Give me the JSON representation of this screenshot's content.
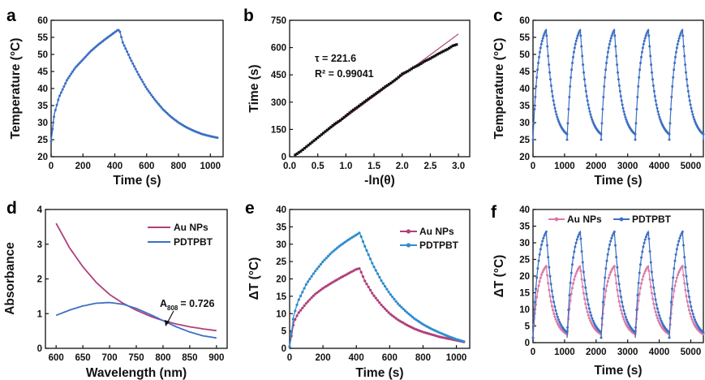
{
  "figure": {
    "panel_labels": [
      "a",
      "b",
      "c",
      "d",
      "e",
      "f"
    ],
    "colors": {
      "blue": "#3c6fc4",
      "magenta": "#b0407a",
      "teal_blue": "#2f8ccd",
      "pink": "#d97aa8",
      "fit_line": "#b0407a",
      "black": "#111111"
    }
  },
  "chart_data": [
    {
      "panel": "a",
      "type": "scatter",
      "xlabel": "Time (s)",
      "ylabel": "Temperature (°C)",
      "xlim": [
        0,
        1080
      ],
      "ylim": [
        20,
        60
      ],
      "xticks": [
        0,
        200,
        400,
        600,
        800,
        1000
      ],
      "yticks": [
        20,
        25,
        30,
        35,
        40,
        45,
        50,
        55,
        60
      ],
      "series": [
        {
          "color": "#3c6fc4",
          "x": [
            0,
            20,
            50,
            100,
            150,
            200,
            250,
            300,
            350,
            400,
            420,
            430,
            450,
            500,
            550,
            600,
            650,
            700,
            750,
            800,
            850,
            900,
            950,
            1000,
            1050
          ],
          "y": [
            24.5,
            32.5,
            37.5,
            42.5,
            46.0,
            48.5,
            51.0,
            53.0,
            54.8,
            56.5,
            57.2,
            57.0,
            53.5,
            48.5,
            44.0,
            40.0,
            36.8,
            34.0,
            31.8,
            30.0,
            28.6,
            27.5,
            26.6,
            26.0,
            25.5
          ]
        }
      ]
    },
    {
      "panel": "b",
      "type": "scatter",
      "xlabel": "-ln(θ)",
      "ylabel": "Time (s)",
      "xlim": [
        0,
        3.2
      ],
      "ylim": [
        0,
        750
      ],
      "xticks": [
        0.0,
        0.5,
        1.0,
        1.5,
        2.0,
        2.5,
        3.0
      ],
      "yticks": [
        0,
        150,
        300,
        450,
        600,
        750
      ],
      "annotations": [
        "τ = 221.6",
        "R² = 0.99041"
      ],
      "fit": {
        "x": [
          0.1,
          3.0
        ],
        "y": [
          12,
          675
        ]
      },
      "series": [
        {
          "color": "#111111",
          "x": [
            0.1,
            0.2,
            0.3,
            0.4,
            0.5,
            0.6,
            0.7,
            0.8,
            0.9,
            1.0,
            1.1,
            1.2,
            1.3,
            1.4,
            1.5,
            1.6,
            1.7,
            1.8,
            1.9,
            2.0,
            2.1,
            2.2,
            2.3,
            2.4,
            2.5,
            2.6,
            2.7,
            2.8,
            2.9,
            3.0
          ],
          "y": [
            10,
            30,
            55,
            80,
            105,
            130,
            155,
            180,
            200,
            225,
            250,
            272,
            295,
            318,
            340,
            362,
            385,
            405,
            428,
            455,
            470,
            490,
            505,
            525,
            540,
            558,
            575,
            590,
            610,
            620
          ]
        }
      ]
    },
    {
      "panel": "c",
      "type": "scatter",
      "xlabel": "Time (s)",
      "ylabel": "Temperature (°C)",
      "xlim": [
        0,
        5400
      ],
      "ylim": [
        20,
        60
      ],
      "xticks": [
        0,
        1000,
        2000,
        3000,
        4000,
        5000
      ],
      "yticks": [
        20,
        25,
        30,
        35,
        40,
        45,
        50,
        55,
        60
      ],
      "cycles": {
        "count": 5,
        "period": 1080,
        "start": [
          0,
          1080,
          2160,
          3240,
          4320
        ],
        "peak_time_offset": 420,
        "peak": 57.2,
        "min": 25.0
      },
      "series": [
        {
          "color": "#3c6fc4"
        }
      ]
    },
    {
      "panel": "d",
      "type": "line",
      "xlabel": "Wavelength (nm)",
      "ylabel": "Absorbance",
      "xlim": [
        580,
        920
      ],
      "ylim": [
        0,
        4
      ],
      "xticks": [
        600,
        650,
        700,
        750,
        800,
        850,
        900
      ],
      "yticks": [
        0,
        1,
        2,
        3,
        4
      ],
      "annotation": {
        "label": "A",
        "subscript": "808",
        "value": "= 0.726"
      },
      "legend": "top-right",
      "series": [
        {
          "name": "Au NPs",
          "color": "#b0407a",
          "x": [
            600,
            625,
            650,
            675,
            700,
            725,
            750,
            775,
            800,
            825,
            850,
            875,
            900
          ],
          "y": [
            3.6,
            2.9,
            2.35,
            1.9,
            1.55,
            1.3,
            1.1,
            0.93,
            0.8,
            0.7,
            0.62,
            0.56,
            0.51
          ]
        },
        {
          "name": "PDTPBT",
          "color": "#3c6fc4",
          "x": [
            600,
            625,
            650,
            675,
            700,
            725,
            750,
            775,
            800,
            825,
            850,
            875,
            900
          ],
          "y": [
            0.95,
            1.1,
            1.22,
            1.3,
            1.32,
            1.27,
            1.15,
            0.98,
            0.8,
            0.62,
            0.47,
            0.36,
            0.3
          ]
        }
      ]
    },
    {
      "panel": "e",
      "type": "scatter",
      "xlabel": "Time (s)",
      "ylabel": "ΔT (°C)",
      "xlim": [
        0,
        1080
      ],
      "ylim": [
        0,
        40
      ],
      "xticks": [
        0,
        200,
        400,
        600,
        800,
        1000
      ],
      "yticks": [
        0,
        5,
        10,
        15,
        20,
        25,
        30,
        35,
        40
      ],
      "legend": "top-right",
      "series": [
        {
          "name": "Au NPs",
          "color": "#b0407a",
          "x": [
            0,
            25,
            50,
            100,
            150,
            200,
            250,
            300,
            350,
            400,
            420,
            450,
            500,
            550,
            600,
            650,
            700,
            750,
            800,
            850,
            900,
            950,
            1000,
            1050
          ],
          "y": [
            0.5,
            7.5,
            10.0,
            13.0,
            15.5,
            17.3,
            18.8,
            20.2,
            21.5,
            22.8,
            23.0,
            19.5,
            15.5,
            12.5,
            10.0,
            8.2,
            6.8,
            5.6,
            4.7,
            4.0,
            3.3,
            2.8,
            2.3,
            1.8
          ]
        },
        {
          "name": "PDTPBT",
          "color": "#2f8ccd",
          "x": [
            0,
            25,
            50,
            100,
            150,
            200,
            250,
            300,
            350,
            400,
            420,
            450,
            500,
            550,
            600,
            650,
            700,
            750,
            800,
            850,
            900,
            950,
            1000,
            1050
          ],
          "y": [
            0.5,
            9.5,
            13.5,
            18.5,
            22.0,
            25.0,
            27.5,
            29.5,
            31.2,
            32.7,
            33.3,
            29.5,
            24.0,
            19.5,
            15.8,
            12.8,
            10.5,
            8.5,
            6.9,
            5.6,
            4.5,
            3.5,
            2.6,
            1.9
          ]
        }
      ]
    },
    {
      "panel": "f",
      "type": "scatter",
      "xlabel": "Time (s)",
      "ylabel": "ΔT (°C)",
      "xlim": [
        0,
        5400
      ],
      "ylim": [
        0,
        40
      ],
      "xticks": [
        0,
        1000,
        2000,
        3000,
        4000,
        5000
      ],
      "yticks": [
        0,
        5,
        10,
        15,
        20,
        25,
        30,
        35,
        40
      ],
      "legend": "top",
      "cycles": {
        "count": 5,
        "period": 1080,
        "start": [
          0,
          1080,
          2160,
          3240,
          4320
        ],
        "peak_time_offset": 420
      },
      "series": [
        {
          "name": "Au NPs",
          "color": "#d97aa8",
          "peak": 23.0,
          "min": 1.5
        },
        {
          "name": "PDTPBT",
          "color": "#3c6fc4",
          "peak": 33.3,
          "min": 1.5
        }
      ]
    }
  ]
}
